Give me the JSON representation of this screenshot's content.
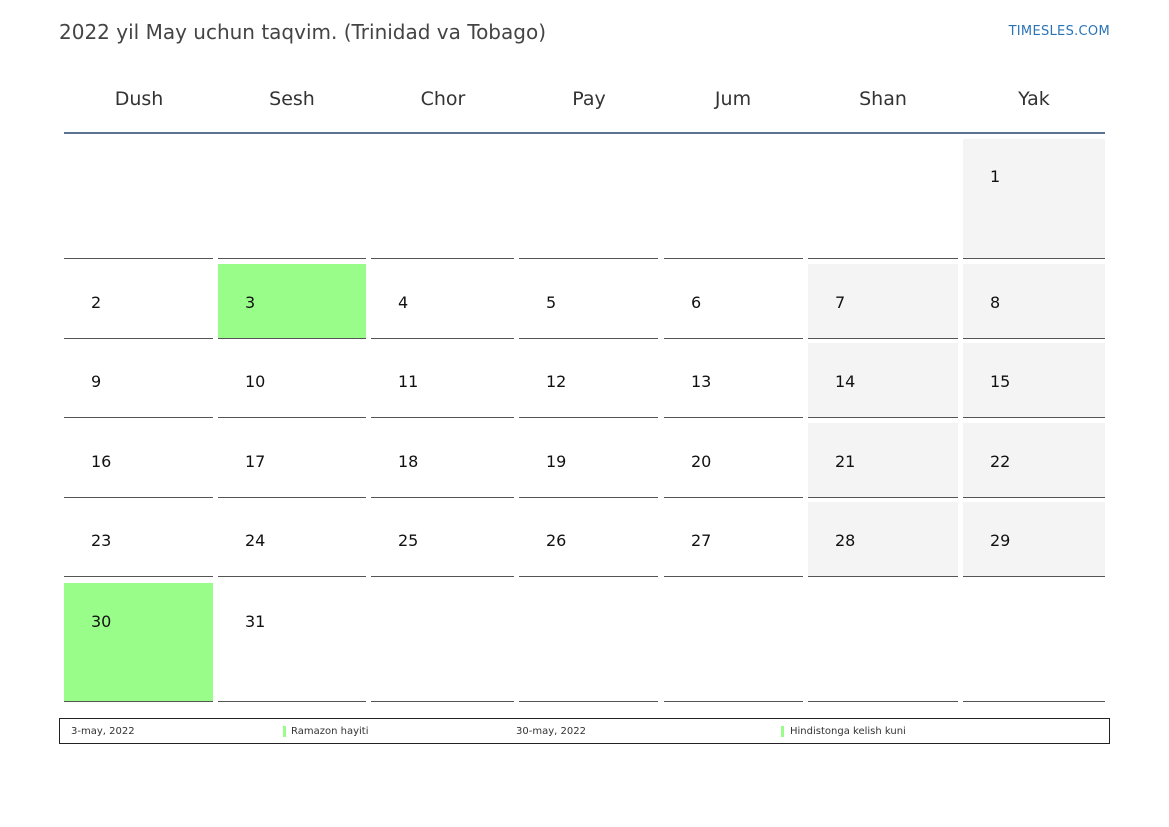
{
  "title": "2022 yil May uchun taqvim. (Trinidad va Tobago)",
  "brand": "TIMESLES.COM",
  "weekdays": [
    "Dush",
    "Sesh",
    "Chor",
    "Pay",
    "Jum",
    "Shan",
    "Yak"
  ],
  "weeks": [
    [
      "",
      "",
      "",
      "",
      "",
      "",
      "1"
    ],
    [
      "2",
      "3",
      "4",
      "5",
      "6",
      "7",
      "8"
    ],
    [
      "9",
      "10",
      "11",
      "12",
      "13",
      "14",
      "15"
    ],
    [
      "16",
      "17",
      "18",
      "19",
      "20",
      "21",
      "22"
    ],
    [
      "23",
      "24",
      "25",
      "26",
      "27",
      "28",
      "29"
    ],
    [
      "30",
      "31",
      "",
      "",
      "",
      "",
      ""
    ]
  ],
  "holiday_days": [
    "3",
    "30"
  ],
  "colors": {
    "holiday": "#99fe89",
    "weekend": "#f4f4f4",
    "header_rule": "#5a7391",
    "brand": "#2a74b6"
  },
  "legend": [
    {
      "date": "3-may, 2022",
      "name": "Ramazon hayiti"
    },
    {
      "date": "30-may, 2022",
      "name": "Hindistonga kelish kuni"
    }
  ]
}
